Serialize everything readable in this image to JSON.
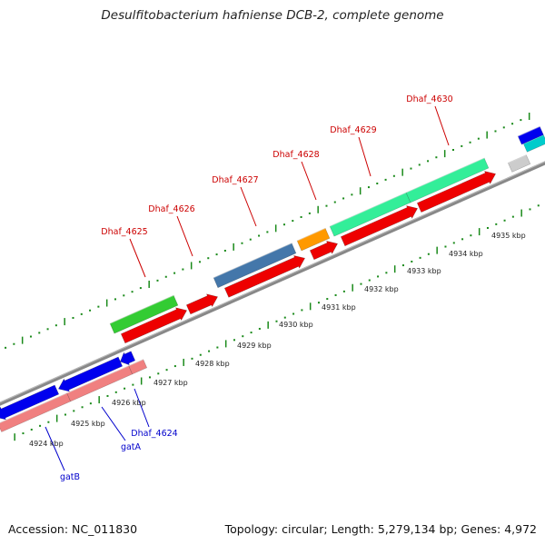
{
  "title": "Desulfitobacterium hafniense DCB-2, complete genome",
  "accession": "Accession: NC_011830",
  "summary": "Topology: circular; Length: 5,279,134 bp; Genes: 4,972",
  "colors": {
    "upper_label": "#cc0000",
    "lower_label": "#0000cc",
    "backbone": "#888888",
    "tick": "#1a8a1a"
  },
  "scale_labels": [
    "4924 kbp",
    "4925 kbp",
    "4926 kbp",
    "4927 kbp",
    "4928 kbp",
    "4929 kbp",
    "4930 kbp",
    "4931 kbp",
    "4932 kbp",
    "4933 kbp",
    "4934 kbp",
    "4935 kbp"
  ],
  "upper_labels": [
    "Dhaf_4625",
    "Dhaf_4626",
    "Dhaf_4627",
    "Dhaf_4628",
    "Dhaf_4629",
    "Dhaf_4630"
  ],
  "lower_labels": [
    "Dhaf_4624",
    "gatA",
    "gatB"
  ],
  "upper_features": [
    {
      "color": "#33cc33"
    },
    {
      "color": "#4477aa"
    },
    {
      "color": "#ff9900"
    },
    {
      "color": "#33ee99"
    },
    {
      "color": "#33ee99"
    },
    {
      "color": "#00cccc"
    },
    {
      "color": "#0000ee"
    }
  ],
  "upper_cds": [
    {
      "color": "#ee0000"
    },
    {
      "color": "#ee0000"
    },
    {
      "color": "#ee0000"
    },
    {
      "color": "#ee0000"
    },
    {
      "color": "#ee0000"
    },
    {
      "color": "#ee0000"
    },
    {
      "color": "#cccccc"
    }
  ],
  "lower_features": [
    {
      "color": "#0000ee"
    },
    {
      "color": "#0000ee"
    },
    {
      "color": "#0000ee"
    }
  ],
  "lower_cds": [
    {
      "color": "#f08080"
    },
    {
      "color": "#f08080"
    },
    {
      "color": "#f08080"
    }
  ]
}
